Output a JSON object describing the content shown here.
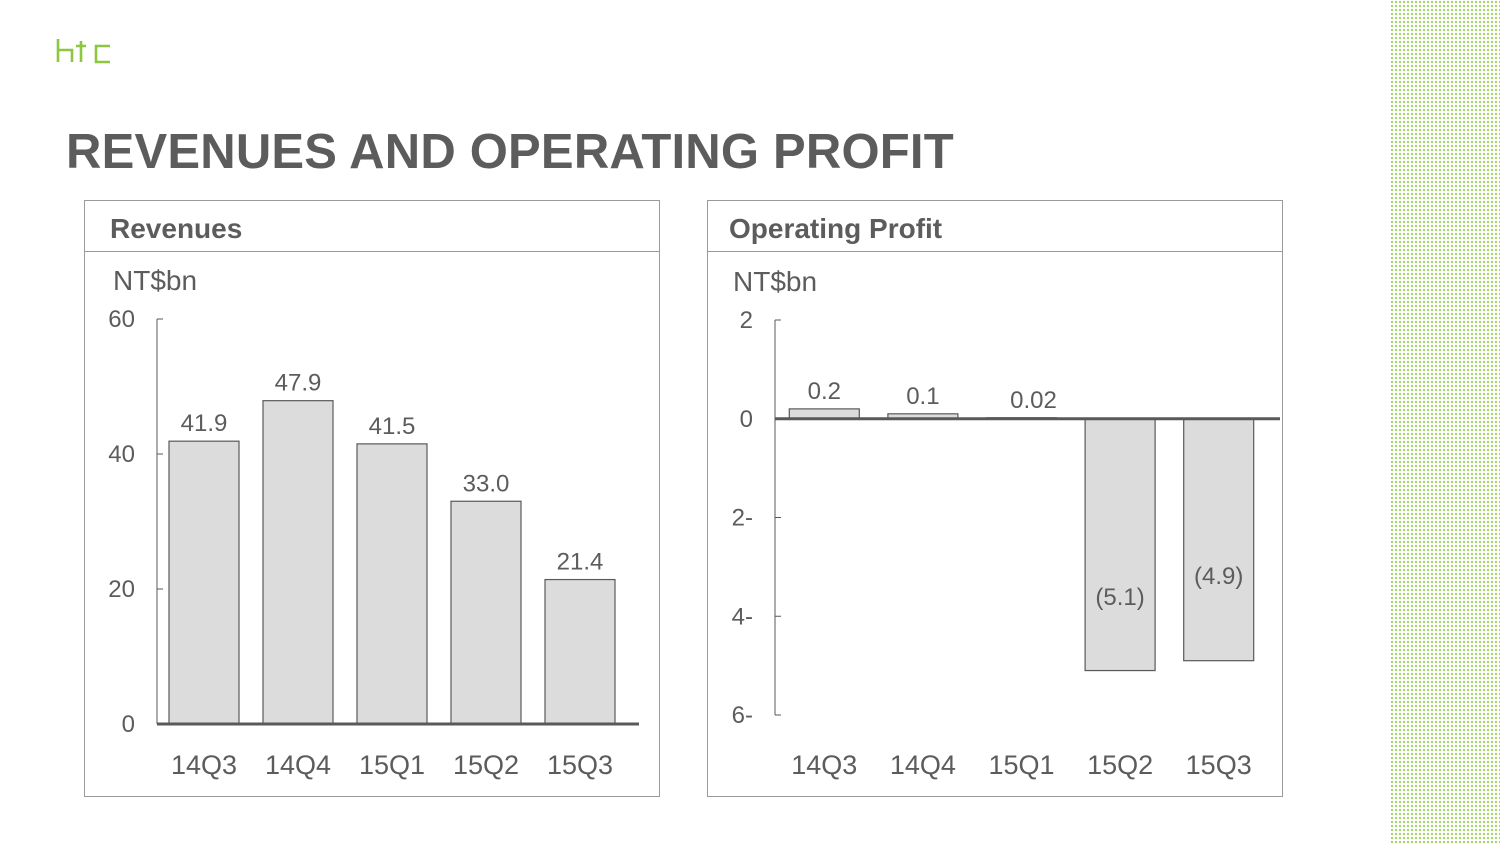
{
  "logo": {
    "text": "htc",
    "color": "#8dc63f"
  },
  "title": "REVENUES AND OPERATING PROFIT",
  "colors": {
    "accent": "#8dc63f",
    "bar_fill": "#dcdcdc",
    "bar_stroke": "#595959",
    "text": "#5c5c5c"
  },
  "chart_data": [
    {
      "type": "bar",
      "panel_title": "Revenues",
      "unit": "NT$bn",
      "categories": [
        "14Q3",
        "14Q4",
        "15Q1",
        "15Q2",
        "15Q3"
      ],
      "values": [
        41.9,
        47.9,
        41.5,
        33.0,
        21.4
      ],
      "value_labels": [
        "41.9",
        "47.9",
        "41.5",
        "33.0",
        "21.4"
      ],
      "ylim": [
        0,
        60
      ],
      "yticks": [
        0,
        20,
        40,
        60
      ],
      "ytick_labels": [
        "0",
        "20",
        "40",
        "60"
      ],
      "grid": false
    },
    {
      "type": "bar",
      "panel_title": "Operating Profit",
      "unit": "NT$bn",
      "categories": [
        "14Q3",
        "14Q4",
        "15Q1",
        "15Q2",
        "15Q3"
      ],
      "values": [
        0.2,
        0.1,
        0.02,
        -5.1,
        -4.9
      ],
      "value_labels": [
        "0.2",
        "0.1",
        "0.02",
        "(5.1)",
        "(4.9)"
      ],
      "ylim": [
        -6,
        2
      ],
      "yticks": [
        2,
        0,
        -2,
        -4,
        -6
      ],
      "ytick_labels": [
        "2",
        "0",
        "2-",
        "4-",
        "6-"
      ],
      "grid": false
    }
  ]
}
